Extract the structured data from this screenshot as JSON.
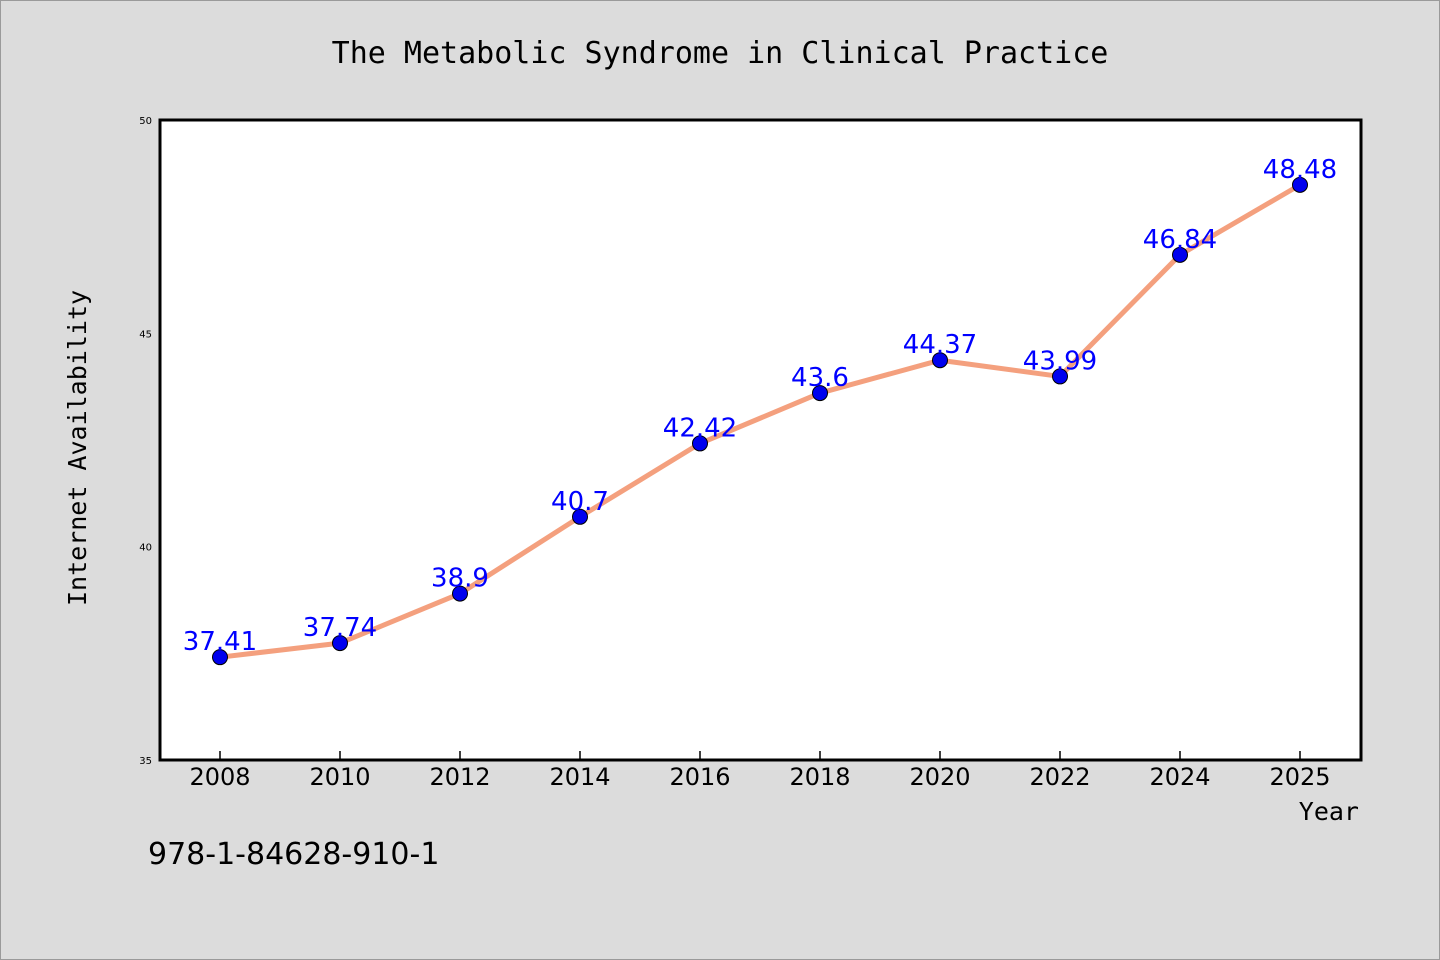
{
  "chart_data": {
    "type": "line",
    "title": "The Metabolic Syndrome in Clinical Practice",
    "xlabel": "Year",
    "ylabel": "Internet Availability",
    "categories": [
      "2008",
      "2010",
      "2012",
      "2014",
      "2016",
      "2018",
      "2020",
      "2022",
      "2024",
      "2025"
    ],
    "series": [
      {
        "values": [
          37.41,
          37.74,
          38.9,
          40.7,
          42.42,
          43.6,
          44.37,
          43.99,
          46.84,
          48.48
        ],
        "data_labels": [
          "37.41",
          "37.74",
          "38.9",
          "40.7",
          "42.42",
          "43.6",
          "44.37",
          "43.99",
          "46.84",
          "48.48"
        ]
      }
    ],
    "ylim": [
      35,
      50
    ],
    "yticks": [
      "35",
      "40",
      "45",
      "50"
    ],
    "grid": false,
    "line_color": "#f4a07e",
    "marker_color": "#0000ee",
    "label_color": "#0000ff"
  },
  "footer": {
    "isbn": "978-1-84628-910-1"
  }
}
